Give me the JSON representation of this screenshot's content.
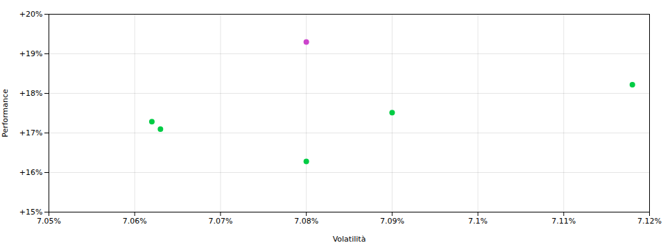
{
  "chart_data": {
    "type": "scatter",
    "xlabel": "Volatilità",
    "ylabel": "Performance",
    "x": [
      0.0708,
      0.07062,
      0.07063,
      0.0708,
      0.0709,
      0.07118
    ],
    "values": [
      0.193,
      0.17285,
      0.17095,
      0.1628,
      0.17515,
      0.1822
    ],
    "colors": [
      "#cc44cc",
      "#00cc44",
      "#00cc44",
      "#00cc44",
      "#00cc44",
      "#00cc44"
    ],
    "xlim": [
      0.0705,
      0.0712
    ],
    "xticks": [
      {
        "value": 0.0705,
        "label": "7.05%"
      },
      {
        "value": 0.0706,
        "label": "7.06%"
      },
      {
        "value": 0.0707,
        "label": "7.07%"
      },
      {
        "value": 0.0708,
        "label": "7.08%"
      },
      {
        "value": 0.0709,
        "label": "7.09%"
      },
      {
        "value": 0.071,
        "label": "7.1%"
      },
      {
        "value": 0.0711,
        "label": "7.11%"
      },
      {
        "value": 0.0712,
        "label": "7.12%"
      }
    ],
    "ylim": [
      0.15,
      0.2
    ],
    "yticks": [
      {
        "value": 0.15,
        "label": "+15%"
      },
      {
        "value": 0.16,
        "label": "+16%"
      },
      {
        "value": 0.17,
        "label": "+17%"
      },
      {
        "value": 0.18,
        "label": "+18%"
      },
      {
        "value": 0.19,
        "label": "+19%"
      },
      {
        "value": 0.2,
        "label": "+20%"
      }
    ],
    "grid": true
  }
}
